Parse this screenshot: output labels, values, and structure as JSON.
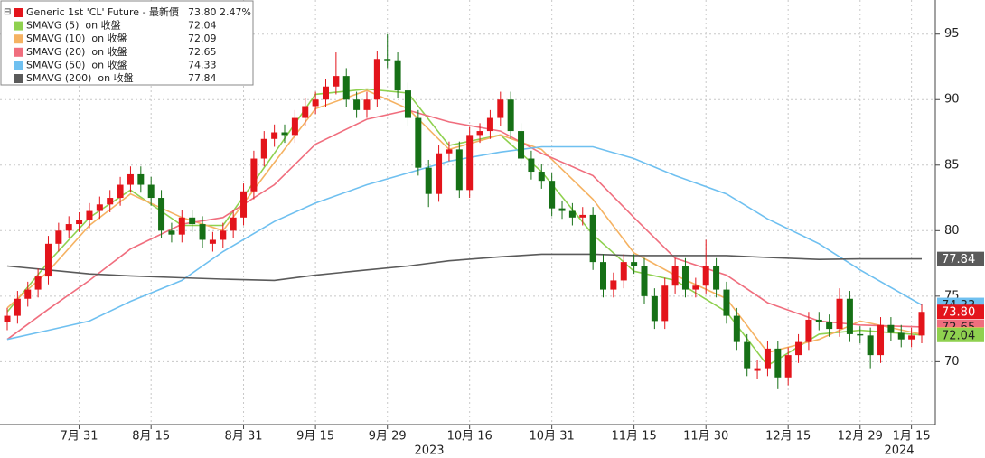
{
  "chart_data": {
    "type": "candlestick",
    "name": "Generic 1st 'CL' Future - 最新價",
    "last_label": "73.80",
    "change_label": "2.47%",
    "color_up": "#e3141b",
    "color_down": "#167016",
    "categories": [
      null,
      null,
      null,
      null,
      null,
      null,
      null,
      "7月 31",
      null,
      null,
      null,
      null,
      null,
      null,
      "8月 15",
      null,
      null,
      null,
      null,
      null,
      null,
      null,
      null,
      "8月 31",
      null,
      null,
      null,
      null,
      null,
      null,
      "9月 15",
      null,
      null,
      null,
      null,
      null,
      null,
      "9月 29",
      null,
      null,
      null,
      null,
      null,
      null,
      null,
      "10月 16",
      null,
      null,
      null,
      null,
      null,
      null,
      null,
      "10月 31",
      null,
      null,
      null,
      null,
      null,
      null,
      null,
      "11月 15",
      null,
      null,
      null,
      null,
      null,
      null,
      "11月 30",
      null,
      null,
      null,
      null,
      null,
      null,
      null,
      "12月 15",
      null,
      null,
      null,
      null,
      null,
      null,
      "12月 29",
      null,
      null,
      null,
      null,
      "1月 15",
      null
    ],
    "open": [
      73.0,
      73.5,
      74.8,
      75.5,
      76.5,
      79.0,
      80.0,
      80.5,
      80.8,
      81.5,
      82.0,
      82.5,
      83.5,
      84.3,
      83.5,
      82.5,
      80.0,
      79.7,
      81.0,
      80.5,
      79.0,
      79.3,
      80.0,
      81.0,
      83.0,
      85.5,
      87.0,
      87.5,
      87.3,
      88.6,
      89.5,
      90.0,
      91.0,
      91.8,
      90.0,
      89.2,
      90.0,
      93.1,
      93.0,
      90.7,
      88.6,
      84.8,
      82.8,
      85.9,
      86.2,
      83.1,
      87.3,
      87.6,
      88.6,
      90.0,
      87.6,
      85.5,
      84.5,
      83.8,
      81.7,
      81.5,
      81.0,
      81.2,
      77.6,
      75.5,
      76.2,
      77.6,
      77.3,
      75.0,
      73.1,
      75.8,
      77.3,
      75.5,
      75.8,
      77.3,
      75.5,
      73.5,
      71.5,
      69.3,
      69.5,
      71.0,
      68.8,
      70.5,
      71.5,
      73.2,
      73.0,
      72.5,
      74.8,
      72.1,
      72.0,
      70.5,
      72.8,
      72.2,
      71.7,
      72.0
    ],
    "high": [
      74.1,
      75.4,
      76.1,
      77.1,
      79.6,
      80.6,
      81.1,
      81.4,
      82.1,
      82.6,
      83.1,
      84.1,
      84.9,
      84.9,
      84.1,
      83.1,
      80.6,
      81.6,
      81.6,
      81.1,
      79.9,
      80.6,
      81.6,
      83.6,
      86.1,
      87.6,
      88.1,
      88.1,
      89.2,
      90.1,
      90.6,
      91.6,
      93.6,
      92.4,
      90.6,
      90.6,
      93.7,
      95.0,
      93.6,
      91.3,
      89.2,
      85.4,
      86.5,
      86.8,
      86.8,
      87.9,
      88.2,
      89.2,
      90.6,
      90.6,
      88.2,
      86.1,
      85.1,
      84.4,
      82.3,
      82.1,
      81.8,
      81.8,
      78.2,
      76.8,
      78.2,
      78.2,
      77.9,
      75.6,
      76.4,
      77.9,
      77.9,
      76.4,
      79.3,
      77.9,
      76.1,
      74.1,
      72.1,
      70.1,
      71.6,
      71.6,
      71.1,
      72.1,
      73.8,
      73.8,
      73.6,
      75.6,
      75.4,
      72.7,
      72.6,
      73.4,
      73.4,
      72.8,
      72.6,
      74.4
    ],
    "low": [
      72.4,
      72.9,
      74.2,
      74.9,
      75.9,
      78.4,
      79.4,
      79.9,
      80.2,
      80.9,
      81.4,
      81.9,
      82.9,
      82.9,
      81.9,
      79.4,
      79.1,
      79.1,
      79.9,
      78.7,
      78.4,
      78.7,
      79.4,
      80.4,
      82.4,
      84.9,
      86.4,
      86.7,
      86.7,
      88.0,
      88.9,
      89.4,
      90.4,
      89.4,
      88.6,
      88.6,
      89.4,
      92.4,
      90.1,
      88.0,
      84.2,
      81.8,
      82.2,
      85.3,
      82.5,
      82.5,
      86.7,
      87.0,
      88.0,
      87.0,
      84.9,
      83.9,
      83.2,
      81.1,
      80.9,
      80.4,
      80.4,
      77.0,
      74.9,
      74.9,
      75.6,
      76.7,
      74.4,
      72.5,
      72.5,
      75.2,
      74.9,
      74.9,
      75.2,
      74.9,
      72.9,
      70.9,
      68.9,
      68.7,
      68.9,
      67.9,
      68.2,
      69.9,
      70.9,
      72.4,
      71.9,
      71.9,
      71.5,
      71.4,
      69.5,
      69.9,
      71.6,
      71.1,
      71.1,
      71.4
    ],
    "close": [
      73.5,
      74.8,
      75.5,
      76.5,
      79.0,
      80.0,
      80.5,
      80.8,
      81.5,
      82.0,
      82.5,
      83.5,
      84.3,
      83.5,
      82.5,
      80.0,
      79.7,
      81.0,
      80.5,
      79.3,
      79.3,
      80.0,
      81.0,
      83.0,
      85.5,
      87.0,
      87.5,
      87.3,
      88.6,
      89.5,
      90.0,
      91.0,
      91.8,
      90.0,
      89.2,
      90.0,
      93.1,
      93.0,
      90.7,
      88.6,
      84.8,
      82.8,
      85.9,
      86.2,
      83.1,
      87.3,
      87.6,
      88.6,
      90.0,
      87.6,
      85.5,
      84.5,
      83.8,
      81.7,
      81.5,
      81.0,
      81.2,
      77.6,
      75.5,
      76.2,
      77.6,
      77.3,
      75.0,
      73.1,
      75.8,
      77.3,
      75.5,
      75.8,
      77.3,
      75.5,
      73.5,
      71.5,
      69.5,
      69.5,
      71.0,
      68.8,
      70.5,
      71.5,
      73.2,
      73.0,
      72.5,
      74.8,
      72.1,
      72.0,
      70.5,
      72.8,
      72.2,
      71.7,
      72.0,
      73.8
    ],
    "series": [
      {
        "name": "SMAVG (5)  on 收盤",
        "color": "#8fd14f",
        "x": [
          0,
          4,
          8,
          12,
          17,
          21,
          26,
          30,
          35,
          39,
          43,
          48,
          52,
          57,
          61,
          65,
          70,
          74,
          79,
          83,
          89
        ],
        "values": [
          73.8,
          77.6,
          81.0,
          83.1,
          80.4,
          80.4,
          85.9,
          90.4,
          90.8,
          90.5,
          86.5,
          87.3,
          84.5,
          79.7,
          76.9,
          76.2,
          73.8,
          69.7,
          72.1,
          72.4,
          72.04
        ]
      },
      {
        "name": "SMAVG (10)  on 收盤",
        "color": "#f5b262",
        "x": [
          0,
          4,
          8,
          12,
          17,
          21,
          26,
          30,
          35,
          39,
          43,
          48,
          52,
          57,
          61,
          65,
          70,
          74,
          79,
          83,
          89
        ],
        "values": [
          74.1,
          76.9,
          80.4,
          82.8,
          81.0,
          80.0,
          85.2,
          89.3,
          90.7,
          89.3,
          86.2,
          87.3,
          86.2,
          82.4,
          78.3,
          76.6,
          74.8,
          70.7,
          71.7,
          73.1,
          72.09
        ]
      },
      {
        "name": "SMAVG (20)  on 收盤",
        "color": "#f06e7e",
        "x": [
          0,
          4,
          8,
          12,
          17,
          21,
          26,
          30,
          35,
          39,
          43,
          48,
          52,
          57,
          61,
          65,
          70,
          74,
          79,
          83,
          89
        ],
        "values": [
          71.7,
          74.0,
          76.2,
          78.6,
          80.5,
          81.0,
          83.5,
          86.6,
          88.5,
          89.2,
          88.3,
          87.6,
          85.9,
          84.2,
          81.0,
          77.9,
          76.6,
          74.5,
          73.1,
          72.8,
          72.65
        ]
      },
      {
        "name": "SMAVG (50)  on 收盤",
        "color": "#6fc0f0",
        "x": [
          0,
          4,
          8,
          12,
          17,
          21,
          26,
          30,
          35,
          39,
          43,
          48,
          52,
          57,
          61,
          65,
          70,
          74,
          79,
          83,
          89
        ],
        "values": [
          71.7,
          72.4,
          73.1,
          74.6,
          76.2,
          78.4,
          80.7,
          82.1,
          83.5,
          84.4,
          85.3,
          86.0,
          86.4,
          86.4,
          85.5,
          84.2,
          82.8,
          80.9,
          79.0,
          77.0,
          74.33
        ]
      },
      {
        "name": "SMAVG (200)  on 收盤",
        "color": "#5a5a5a",
        "x": [
          0,
          4,
          8,
          12,
          17,
          21,
          26,
          30,
          35,
          39,
          43,
          48,
          52,
          57,
          61,
          65,
          70,
          74,
          79,
          83,
          89
        ],
        "values": [
          77.3,
          77.0,
          76.7,
          76.55,
          76.4,
          76.3,
          76.2,
          76.6,
          77.0,
          77.3,
          77.7,
          78.0,
          78.2,
          78.2,
          78.1,
          78.1,
          78.1,
          77.95,
          77.8,
          77.84,
          77.84
        ]
      }
    ],
    "x_group_labels": [
      "2023",
      "2024"
    ],
    "ylim": [
      65.2,
      97.6
    ],
    "yticks": [
      70,
      75,
      80,
      85,
      90,
      95
    ],
    "grid": true
  }
}
